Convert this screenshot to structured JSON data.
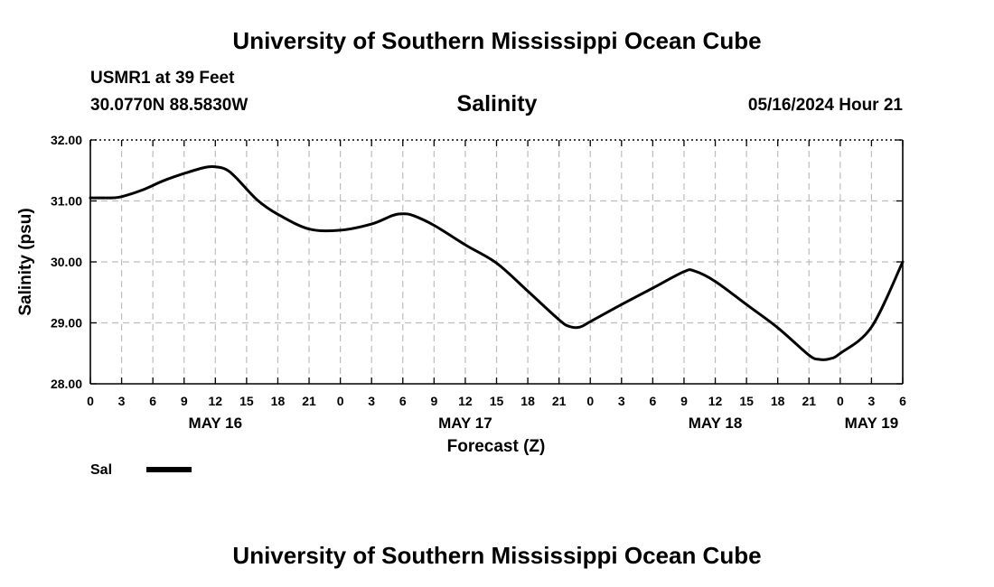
{
  "header": {
    "org_title": "University of Southern Mississippi Ocean Cube",
    "station": "USMR1 at 39 Feet",
    "coords": "30.0770N  88.5830W",
    "datetime": "05/16/2024 Hour 21"
  },
  "footer": {
    "org_title": "University of Southern Mississippi Ocean Cube"
  },
  "chart_data": {
    "type": "line",
    "title": "Salinity",
    "xlabel": "Forecast (Z)",
    "ylabel": "Salinity (psu)",
    "ylim": [
      28.0,
      32.0
    ],
    "xlim": [
      0,
      78
    ],
    "y_ticks": [
      "28.00",
      "29.00",
      "30.00",
      "31.00",
      "32.00"
    ],
    "y_tick_values": [
      28,
      29,
      30,
      31,
      32
    ],
    "x_tick_labels": [
      "0",
      "3",
      "6",
      "9",
      "12",
      "15",
      "18",
      "21",
      "0",
      "3",
      "6",
      "9",
      "12",
      "15",
      "18",
      "21",
      "0",
      "3",
      "6",
      "9",
      "12",
      "15",
      "18",
      "21",
      "0",
      "3",
      "6"
    ],
    "x_tick_hours": [
      0,
      3,
      6,
      9,
      12,
      15,
      18,
      21,
      24,
      27,
      30,
      33,
      36,
      39,
      42,
      45,
      48,
      51,
      54,
      57,
      60,
      63,
      66,
      69,
      72,
      75,
      78
    ],
    "day_labels": [
      {
        "label": "MAY 16",
        "hour": 12
      },
      {
        "label": "MAY 17",
        "hour": 36
      },
      {
        "label": "MAY 18",
        "hour": 60
      },
      {
        "label": "MAY 19",
        "hour": 75
      }
    ],
    "grid": true,
    "legend": {
      "position": "bottom-left",
      "entries": [
        {
          "name": "Sal",
          "color": "#000000"
        }
      ]
    },
    "series": [
      {
        "name": "Sal",
        "color": "#000000",
        "x": [
          0,
          2,
          3,
          5,
          7,
          9,
          11,
          12,
          13,
          14,
          16,
          18,
          21,
          24,
          27,
          29,
          30,
          31,
          33,
          36,
          39,
          42,
          45,
          46,
          47,
          48,
          51,
          54,
          57,
          58,
          60,
          63,
          66,
          69,
          70,
          71,
          72,
          75,
          78
        ],
        "values": [
          31.05,
          31.05,
          31.07,
          31.18,
          31.33,
          31.45,
          31.55,
          31.56,
          31.52,
          31.38,
          31.02,
          30.78,
          30.54,
          30.52,
          30.62,
          30.76,
          30.79,
          30.76,
          30.6,
          30.28,
          29.98,
          29.52,
          29.05,
          28.94,
          28.93,
          29.02,
          29.3,
          29.57,
          29.84,
          29.85,
          29.68,
          29.3,
          28.92,
          28.47,
          28.4,
          28.41,
          28.5,
          28.93,
          30.0
        ]
      }
    ]
  }
}
